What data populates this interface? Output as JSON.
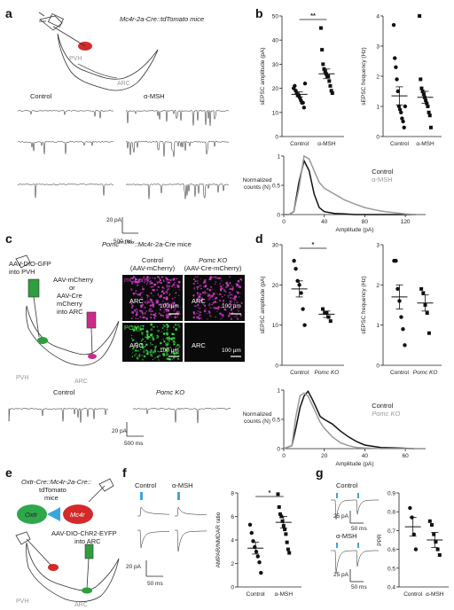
{
  "panels": {
    "a": {
      "letter": "a",
      "mouse_line": "Mc4r-2a-Cre::tdTomato mice",
      "region_pvh": "PVH",
      "region_arc": "ARC",
      "cond_control": "Control",
      "cond_treat": "α-MSH",
      "scale_y": "20 pA",
      "scale_x": "500 ms"
    },
    "b": {
      "letter": "b",
      "sig": "**",
      "amp_ylabel": "sEPSC amplitude (pA)",
      "freq_ylabel": "sEPSC frequency (Hz)",
      "amp_ticks": [
        "0",
        "10",
        "20",
        "30",
        "40",
        "50"
      ],
      "freq_ticks": [
        "0",
        "1",
        "2",
        "3",
        "4"
      ],
      "xcats": [
        "Control",
        "α-MSH"
      ],
      "cum_ylabel_1": "Normalized",
      "cum_ylabel_2": "counts (N)",
      "cum_xlabel": "Amplitude (pA)",
      "cum_xticks": [
        "0",
        "40",
        "80",
        "120"
      ],
      "cum_yticks": [
        "0",
        "0.5",
        "1"
      ],
      "legend_control": "Control",
      "legend_treat": "α-MSH"
    },
    "c": {
      "letter": "c",
      "mouse_line": "Pomc",
      "mouse_sup": "tm1/flox",
      "mouse_rest": "::Mc4r-2a-Cre mice",
      "inj1": "AAV-DIO-GFP",
      "inj1b": "into PVH",
      "inj2a": "AAV-mCherry",
      "inj2b": "or",
      "inj2c": "AAV-Cre",
      "inj2d": "mCherry",
      "inj2e": "into ARC",
      "col1_a": "Control",
      "col1_b": "(AAV-mCherry)",
      "col2_a": "Pomc KO",
      "col2_b": "(AAV-Cre-mCherry)",
      "row_mcherry": "mCherry",
      "row_pomc": "POMC",
      "img_arc": "ARC",
      "img_scale": "100 µm",
      "region_pvh": "PVH",
      "region_arc": "ARC",
      "trace_control": "Control",
      "trace_ko": "Pomc KO",
      "scale_y": "20 pA",
      "scale_x": "500 ms"
    },
    "d": {
      "letter": "d",
      "sig": "*",
      "amp_ylabel": "sEPSC amplitude (pA)",
      "freq_ylabel": "sEPSC frequency (Hz)",
      "amp_ticks": [
        "0",
        "10",
        "20",
        "30"
      ],
      "freq_ticks": [
        "0",
        "1",
        "2",
        "3"
      ],
      "xcats": [
        "Control",
        "Pomc KO"
      ],
      "cum_ylabel_1": "Normalized",
      "cum_ylabel_2": "counts (N)",
      "cum_xlabel": "Amplitude (pA)",
      "cum_xticks": [
        "0",
        "20",
        "40",
        "60"
      ],
      "cum_yticks": [
        "0",
        "0.5",
        "1"
      ],
      "legend_control": "Control",
      "legend_ko": "Pomc KO"
    },
    "e": {
      "letter": "e",
      "line1": "Oxtr-Cre::Mc4r-2a-Cre::",
      "line2": "tdTomato",
      "line3": "mice",
      "oxtr": "Oxtr",
      "mc4r": "Mc4r",
      "virus1": "AAV-DIO-ChR2-EYFP",
      "virus2": "into ARC",
      "region_pvh": "PVH",
      "region_arc": "ARC"
    },
    "f": {
      "letter": "f",
      "cond_control": "Control",
      "cond_treat": "α-MSH",
      "scale_y": "20 pA",
      "scale_x": "50 ms",
      "sig": "*",
      "ylabel": "AMPAR/NMDAR ratio",
      "yticks": [
        "0",
        "2",
        "4",
        "6",
        "8"
      ],
      "xcats": [
        "Control",
        "α-MSH"
      ]
    },
    "g": {
      "letter": "g",
      "cond_control": "Control",
      "cond_treat": "α-MSH",
      "scale_y": "25 pA",
      "scale_x": "50 ms",
      "ylabel": "PPR",
      "yticks": [
        "0.4",
        "0.5",
        "0.6",
        "0.7",
        "0.8",
        "0.9"
      ],
      "xcats": [
        "Control",
        "α-MSH"
      ]
    }
  },
  "chart_data": [
    {
      "type": "scatter",
      "panel": "b",
      "ylabel": "sEPSC amplitude (pA)",
      "categories": [
        "Control",
        "α-MSH"
      ],
      "ylim": [
        0,
        50
      ],
      "significance": "**",
      "series": [
        {
          "values": [
            20,
            21,
            19,
            18,
            17,
            17,
            16,
            15,
            14,
            14,
            12,
            22
          ],
          "mean": 17.5,
          "sem": 1.0
        },
        {
          "values": [
            45,
            36,
            30,
            28,
            27,
            26,
            25,
            25,
            23,
            21,
            19,
            18
          ],
          "mean": 26,
          "sem": 2.0
        }
      ]
    },
    {
      "type": "scatter",
      "panel": "b",
      "ylabel": "sEPSC frequency (Hz)",
      "categories": [
        "Control",
        "α-MSH"
      ],
      "ylim": [
        0,
        4
      ],
      "series": [
        {
          "values": [
            3.7,
            2.6,
            2.3,
            1.9,
            1.5,
            1.0,
            0.9,
            0.8,
            0.6,
            0.5,
            0.3,
            1.0
          ],
          "mean": 1.35,
          "sem": 0.3
        },
        {
          "values": [
            4.0,
            1.9,
            1.6,
            1.5,
            1.4,
            1.3,
            1.2,
            1.1,
            1.0,
            0.8,
            0.7,
            0.3
          ],
          "mean": 1.3,
          "sem": 0.2
        }
      ]
    },
    {
      "type": "line",
      "panel": "b",
      "xlabel": "Amplitude (pA)",
      "xlim": [
        0,
        140
      ],
      "ylim": [
        0,
        1
      ],
      "x": [
        0,
        5,
        10,
        15,
        20,
        25,
        30,
        35,
        40,
        50,
        60,
        70,
        80,
        90,
        100,
        110,
        120,
        130
      ],
      "series": [
        {
          "name": "Control",
          "values": [
            0,
            0,
            0.05,
            0.55,
            0.92,
            0.75,
            0.35,
            0.12,
            0.05,
            0.02,
            0.01,
            0,
            0,
            0,
            0,
            0,
            0,
            0
          ]
        },
        {
          "name": "α-MSH",
          "values": [
            0,
            0,
            0.05,
            0.45,
            1.0,
            0.95,
            0.75,
            0.55,
            0.45,
            0.35,
            0.25,
            0.18,
            0.12,
            0.08,
            0.05,
            0.03,
            0.01,
            0
          ]
        }
      ]
    },
    {
      "type": "scatter",
      "panel": "d",
      "ylabel": "sEPSC amplitude (pA)",
      "categories": [
        "Control",
        "Pomc KO"
      ],
      "ylim": [
        0,
        30
      ],
      "significance": "*",
      "series": [
        {
          "values": [
            26,
            24,
            21,
            20,
            18,
            14,
            10
          ],
          "mean": 19,
          "sem": 2.0
        },
        {
          "values": [
            14,
            13,
            13,
            12,
            11
          ],
          "mean": 12.7,
          "sem": 0.8
        }
      ]
    },
    {
      "type": "scatter",
      "panel": "d",
      "ylabel": "sEPSC frequency (Hz)",
      "categories": [
        "Control",
        "Pomc KO"
      ],
      "ylim": [
        0,
        3
      ],
      "series": [
        {
          "values": [
            2.6,
            2.6,
            1.9,
            1.6,
            1.2,
            0.9,
            0.5
          ],
          "mean": 1.7,
          "sem": 0.3
        },
        {
          "values": [
            1.9,
            1.8,
            1.5,
            1.3,
            0.8
          ],
          "mean": 1.55,
          "sem": 0.2
        }
      ]
    },
    {
      "type": "line",
      "panel": "d",
      "xlabel": "Amplitude (pA)",
      "xlim": [
        0,
        70
      ],
      "ylim": [
        0,
        1
      ],
      "x": [
        0,
        4,
        6,
        8,
        10,
        12,
        14,
        16,
        18,
        20,
        24,
        28,
        32,
        36,
        40,
        48,
        56,
        64
      ],
      "series": [
        {
          "name": "Control",
          "values": [
            0,
            0.05,
            0.35,
            0.7,
            0.9,
            0.98,
            0.85,
            0.7,
            0.55,
            0.5,
            0.42,
            0.3,
            0.2,
            0.12,
            0.06,
            0.02,
            0.01,
            0
          ]
        },
        {
          "name": "Pomc KO",
          "values": [
            0,
            0.05,
            0.55,
            0.9,
            0.95,
            0.9,
            0.75,
            0.6,
            0.45,
            0.35,
            0.2,
            0.1,
            0.05,
            0.02,
            0.01,
            0,
            0,
            0
          ]
        }
      ]
    },
    {
      "type": "scatter",
      "panel": "f",
      "ylabel": "AMPAR/NMDAR ratio",
      "categories": [
        "Control",
        "α-MSH"
      ],
      "ylim": [
        0,
        8
      ],
      "significance": "*",
      "series": [
        {
          "values": [
            5.3,
            4.6,
            3.9,
            3.4,
            3.0,
            2.6,
            2.1,
            1.2
          ],
          "mean": 3.3,
          "sem": 0.5
        },
        {
          "values": [
            7.9,
            6.8,
            6.2,
            6.0,
            5.6,
            5.2,
            4.9,
            4.5,
            3.8,
            3.2,
            2.9
          ],
          "mean": 5.5,
          "sem": 0.5
        }
      ]
    },
    {
      "type": "scatter",
      "panel": "g",
      "ylabel": "PPR",
      "categories": [
        "Control",
        "α-MSH"
      ],
      "ylim": [
        0.4,
        0.9
      ],
      "series": [
        {
          "values": [
            0.82,
            0.77,
            0.68,
            0.6
          ],
          "mean": 0.72,
          "sem": 0.05
        },
        {
          "values": [
            0.75,
            0.73,
            0.68,
            0.64,
            0.6,
            0.57
          ],
          "mean": 0.65,
          "sem": 0.04
        }
      ]
    }
  ]
}
